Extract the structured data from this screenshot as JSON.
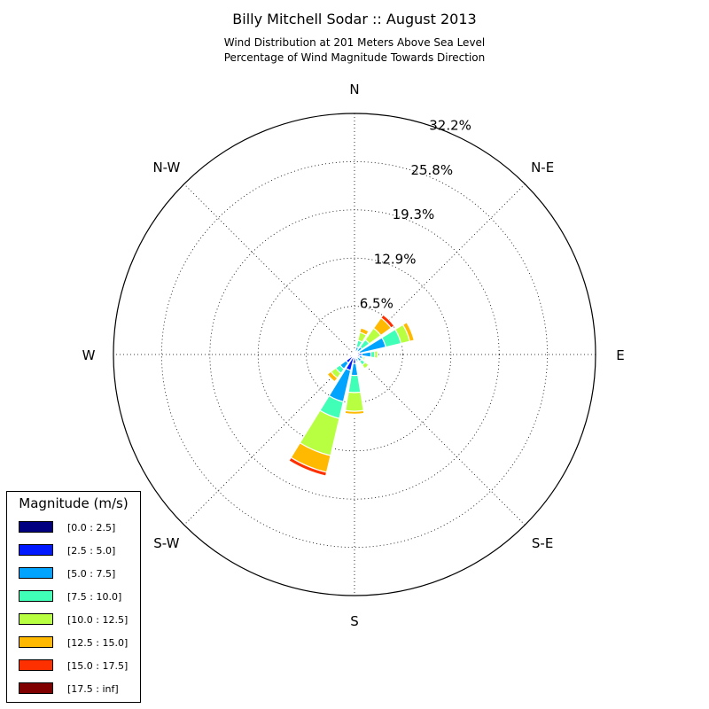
{
  "chart_data": {
    "type": "windrose",
    "title": "Billy Mitchell Sodar :: August 2013",
    "subtitle_lines": [
      "Wind Distribution at 201 Meters Above Sea Level",
      "Percentage of Wind Magnitude Towards Direction"
    ],
    "direction_labels": [
      "N",
      "N-E",
      "E",
      "S-E",
      "S",
      "S-W",
      "W",
      "N-W"
    ],
    "radial_tick_labels": [
      "6.5%",
      "12.9%",
      "19.3%",
      "25.8%",
      "32.2%"
    ],
    "radial_ticks": [
      6.45,
      12.9,
      19.35,
      25.8,
      32.25
    ],
    "rmax": 32.25,
    "grid": true,
    "legend_position": "lower-left",
    "legend": {
      "title": "Magnitude (m/s)",
      "bins": [
        {
          "label": "[0.0 : 2.5]",
          "color": "#000080"
        },
        {
          "label": "[2.5 : 5.0]",
          "color": "#0019ff"
        },
        {
          "label": "[5.0 : 7.5]",
          "color": "#00a4ff"
        },
        {
          "label": "[7.5 : 10.0]",
          "color": "#40ffb7"
        },
        {
          "label": "[10.0 : 12.5]",
          "color": "#b7ff40"
        },
        {
          "label": "[12.5 : 15.0]",
          "color": "#ffb900"
        },
        {
          "label": "[15.0 : 17.5]",
          "color": "#ff3000"
        },
        {
          "label": "[17.5 : inf]",
          "color": "#800000"
        }
      ]
    },
    "sectors": [
      {
        "direction": 0,
        "values": [
          0.1,
          0.15,
          0.15,
          0.1,
          0.1,
          0,
          0,
          0
        ]
      },
      {
        "direction": 22.5,
        "values": [
          0.15,
          0.3,
          0.6,
          0.9,
          1.1,
          0.6,
          0,
          0
        ]
      },
      {
        "direction": 45,
        "values": [
          0.15,
          0.4,
          0.7,
          1.2,
          1.9,
          1.7,
          0.5,
          0
        ]
      },
      {
        "direction": 67.5,
        "values": [
          0.2,
          0.5,
          3.6,
          2.1,
          1.2,
          0.6,
          0,
          0
        ]
      },
      {
        "direction": 90,
        "values": [
          0.2,
          0.8,
          1.2,
          0.5,
          0.4,
          0,
          0,
          0
        ]
      },
      {
        "direction": 112.5,
        "values": [
          0.2,
          0.5,
          0.4,
          0.2,
          0.2,
          0,
          0,
          0
        ]
      },
      {
        "direction": 135,
        "values": [
          0.15,
          0.4,
          0.6,
          0.6,
          0.6,
          0,
          0,
          0
        ]
      },
      {
        "direction": 157.5,
        "values": [
          0.2,
          0.4,
          0.3,
          0.2,
          0.1,
          0,
          0,
          0
        ]
      },
      {
        "direction": 180,
        "values": [
          0.2,
          1.0,
          1.6,
          2.3,
          2.5,
          0.4,
          0.15,
          0
        ]
      },
      {
        "direction": 202.5,
        "values": [
          0.3,
          1.9,
          4.3,
          2.3,
          5.1,
          2.3,
          0.5,
          0
        ]
      },
      {
        "direction": 225,
        "values": [
          0.3,
          1.1,
          1.0,
          0.7,
          0.8,
          0.6,
          0,
          0
        ]
      },
      {
        "direction": 247.5,
        "values": [
          0.2,
          0.5,
          0.1,
          0,
          0,
          0,
          0,
          0
        ]
      },
      {
        "direction": 270,
        "values": [
          0.2,
          0.3,
          0.1,
          0,
          0,
          0,
          0,
          0
        ]
      },
      {
        "direction": 292.5,
        "values": [
          0.1,
          0.15,
          0.1,
          0,
          0,
          0,
          0,
          0
        ]
      },
      {
        "direction": 315,
        "values": [
          0.1,
          0.1,
          0.05,
          0,
          0,
          0,
          0,
          0
        ]
      },
      {
        "direction": 337.5,
        "values": [
          0.1,
          0.1,
          0.05,
          0,
          0,
          0,
          0,
          0
        ]
      }
    ]
  }
}
